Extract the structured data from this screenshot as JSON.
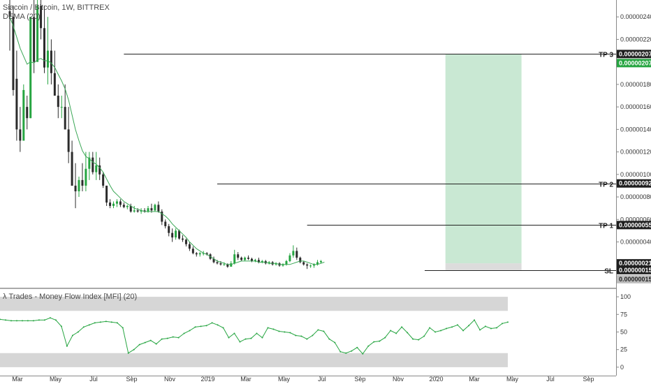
{
  "header": {
    "main_title": "Siacoin / Bitcoin, 1W, BITTREX",
    "main_indicator": "DEMA (20)",
    "mfi_title": "λ Trades - Money Flow Index [MFI] (20)"
  },
  "colors": {
    "up": "#26a541",
    "down": "#2b2b2b",
    "ma": "#3aa655",
    "profit_zone": "#c9e8d3",
    "stop_zone": "#bfbfbf",
    "mfi_band": "#d6d6d6"
  },
  "chart_data": [
    {
      "type": "candlestick",
      "title": "Siacoin / Bitcoin, 1W, BITTREX",
      "ylim": [
        0,
        2.55e-06
      ],
      "y_ticks": [
        4e-07,
        6e-07,
        8e-07,
        1e-06,
        1.2e-06,
        1.4e-06,
        1.6e-06,
        1.8e-06,
        2e-06,
        2.2e-06,
        2.4e-06
      ],
      "y_tick_labels": [
        "0.00000040",
        "0.00000060",
        "0.00000080",
        "0.00000100",
        "0.00000120",
        "0.00000140",
        "0.00000160",
        "0.00000180",
        "0.00000200",
        "0.00000220",
        "0.00000240"
      ],
      "x_tick_labels": [
        "Mar",
        "May",
        "Jul",
        "Sep",
        "Nov",
        "2019",
        "Mar",
        "May",
        "Jul",
        "Sep",
        "Nov",
        "2020",
        "Mar",
        "May",
        "Jul",
        "Sep"
      ],
      "candles": [
        {
          "o": 2.45e-06,
          "h": 2.6e-06,
          "l": 2.1e-06,
          "c": 2.4e-06
        },
        {
          "o": 2.4e-06,
          "h": 2.5e-06,
          "l": 1.7e-06,
          "c": 1.75e-06
        },
        {
          "o": 1.85e-06,
          "h": 2.1e-06,
          "l": 1.3e-06,
          "c": 1.4e-06
        },
        {
          "o": 1.4e-06,
          "h": 1.6e-06,
          "l": 1.2e-06,
          "c": 1.3e-06
        },
        {
          "o": 1.3e-06,
          "h": 1.8e-06,
          "l": 1.3e-06,
          "c": 1.75e-06
        },
        {
          "o": 1.6e-06,
          "h": 1.7e-06,
          "l": 1.4e-06,
          "c": 1.5e-06
        },
        {
          "o": 1.5e-06,
          "h": 2.4e-06,
          "l": 1.5e-06,
          "c": 2.4e-06
        },
        {
          "o": 2.4e-06,
          "h": 2.6e-06,
          "l": 1.9e-06,
          "c": 2e-06
        },
        {
          "o": 2e-06,
          "h": 2.6e-06,
          "l": 2e-06,
          "c": 2.5e-06
        },
        {
          "o": 2.5e-06,
          "h": 2.6e-06,
          "l": 2.2e-06,
          "c": 2.3e-06
        },
        {
          "o": 2.3e-06,
          "h": 2.5e-06,
          "l": 1.9e-06,
          "c": 1.95e-06
        },
        {
          "o": 1.95e-06,
          "h": 2.4e-06,
          "l": 1.8e-06,
          "c": 2.1e-06
        },
        {
          "o": 2.1e-06,
          "h": 2.2e-06,
          "l": 1.8e-06,
          "c": 1.9e-06
        },
        {
          "o": 1.9e-06,
          "h": 2.1e-06,
          "l": 1.7e-06,
          "c": 1.7e-06
        },
        {
          "o": 1.7e-06,
          "h": 1.8e-06,
          "l": 1.5e-06,
          "c": 1.6e-06
        },
        {
          "o": 1.6e-06,
          "h": 1.7e-06,
          "l": 1.5e-06,
          "c": 1.6e-06
        },
        {
          "o": 1.6e-06,
          "h": 1.8e-06,
          "l": 1.4e-06,
          "c": 1.4e-06
        },
        {
          "o": 1.4e-06,
          "h": 1.6e-06,
          "l": 1.1e-06,
          "c": 1.2e-06
        },
        {
          "o": 1.2e-06,
          "h": 1.3e-06,
          "l": 9e-07,
          "c": 9e-07
        },
        {
          "o": 9e-07,
          "h": 1.1e-06,
          "l": 7e-07,
          "c": 8.5e-07
        },
        {
          "o": 8.5e-07,
          "h": 9.8e-07,
          "l": 8e-07,
          "c": 9.5e-07
        },
        {
          "o": 9.5e-07,
          "h": 1.1e-06,
          "l": 8.5e-07,
          "c": 9e-07
        },
        {
          "o": 9e-07,
          "h": 1.2e-06,
          "l": 8.5e-07,
          "c": 1.05e-06
        },
        {
          "o": 1.05e-06,
          "h": 1.2e-06,
          "l": 9.5e-07,
          "c": 1.15e-06
        },
        {
          "o": 1.15e-06,
          "h": 1.2e-06,
          "l": 1e-06,
          "c": 1.02e-06
        },
        {
          "o": 1.02e-06,
          "h": 1.2e-06,
          "l": 9.5e-07,
          "c": 1.08e-06
        },
        {
          "o": 1.08e-06,
          "h": 1.15e-06,
          "l": 9.5e-07,
          "c": 1e-06
        },
        {
          "o": 1e-06,
          "h": 1.02e-06,
          "l": 8.8e-07,
          "c": 9e-07
        },
        {
          "o": 9e-07,
          "h": 9e-07,
          "l": 7.2e-07,
          "c": 7.5e-07
        },
        {
          "o": 7.5e-07,
          "h": 7.8e-07,
          "l": 7e-07,
          "c": 7.2e-07
        },
        {
          "o": 7.2e-07,
          "h": 7.6e-07,
          "l": 7e-07,
          "c": 7.4e-07
        },
        {
          "o": 7.4e-07,
          "h": 7.8e-07,
          "l": 7.1e-07,
          "c": 7.6e-07
        },
        {
          "o": 7.6e-07,
          "h": 7.8e-07,
          "l": 7.1e-07,
          "c": 7.3e-07
        },
        {
          "o": 7.3e-07,
          "h": 7.5e-07,
          "l": 7e-07,
          "c": 7.1e-07
        },
        {
          "o": 7.1e-07,
          "h": 7.3e-07,
          "l": 6.9e-07,
          "c": 7.2e-07
        },
        {
          "o": 7.2e-07,
          "h": 7.4e-07,
          "l": 6.6e-07,
          "c": 6.7e-07
        },
        {
          "o": 6.7e-07,
          "h": 7.2e-07,
          "l": 6.6e-07,
          "c": 6.8e-07
        },
        {
          "o": 6.8e-07,
          "h": 7e-07,
          "l": 6.6e-07,
          "c": 6.7e-07
        },
        {
          "o": 6.7e-07,
          "h": 7e-07,
          "l": 6.5e-07,
          "c": 6.8e-07
        },
        {
          "o": 6.8e-07,
          "h": 7e-07,
          "l": 6.6e-07,
          "c": 6.7e-07
        },
        {
          "o": 6.7e-07,
          "h": 7.2e-07,
          "l": 6.6e-07,
          "c": 7e-07
        },
        {
          "o": 7e-07,
          "h": 7.4e-07,
          "l": 6.6e-07,
          "c": 6.8e-07
        },
        {
          "o": 6.8e-07,
          "h": 7.4e-07,
          "l": 6.7e-07,
          "c": 7.3e-07
        },
        {
          "o": 7.3e-07,
          "h": 7.6e-07,
          "l": 6.6e-07,
          "c": 6.7e-07
        },
        {
          "o": 6.7e-07,
          "h": 6.9e-07,
          "l": 5.5e-07,
          "c": 5.8e-07
        },
        {
          "o": 5.8e-07,
          "h": 6e-07,
          "l": 5.2e-07,
          "c": 5.4e-07
        },
        {
          "o": 5.4e-07,
          "h": 5.6e-07,
          "l": 4.5e-07,
          "c": 4.8e-07
        },
        {
          "o": 4.8e-07,
          "h": 5.2e-07,
          "l": 4e-07,
          "c": 4.4e-07
        },
        {
          "o": 4.4e-07,
          "h": 5.2e-07,
          "l": 4.2e-07,
          "c": 5e-07
        },
        {
          "o": 5e-07,
          "h": 5.1e-07,
          "l": 4.2e-07,
          "c": 4.3e-07
        },
        {
          "o": 4.3e-07,
          "h": 4.6e-07,
          "l": 4e-07,
          "c": 4.2e-07
        },
        {
          "o": 4.2e-07,
          "h": 4.3e-07,
          "l": 3.6e-07,
          "c": 3.8e-07
        },
        {
          "o": 3.8e-07,
          "h": 4e-07,
          "l": 3.2e-07,
          "c": 3.4e-07
        },
        {
          "o": 3.4e-07,
          "h": 3.6e-07,
          "l": 2.9e-07,
          "c": 3e-07
        },
        {
          "o": 3e-07,
          "h": 3.1e-07,
          "l": 2.7e-07,
          "c": 2.9e-07
        },
        {
          "o": 2.9e-07,
          "h": 3.1e-07,
          "l": 2.7e-07,
          "c": 3e-07
        },
        {
          "o": 3e-07,
          "h": 3.2e-07,
          "l": 2.8e-07,
          "c": 3e-07
        },
        {
          "o": 3e-07,
          "h": 3.1e-07,
          "l": 2.8e-07,
          "c": 2.9e-07
        },
        {
          "o": 2.9e-07,
          "h": 3e-07,
          "l": 2.4e-07,
          "c": 2.5e-07
        },
        {
          "o": 2.5e-07,
          "h": 2.7e-07,
          "l": 2.1e-07,
          "c": 2.2e-07
        },
        {
          "o": 2.2e-07,
          "h": 2.4e-07,
          "l": 2e-07,
          "c": 2.1e-07
        },
        {
          "o": 2.1e-07,
          "h": 2.3e-07,
          "l": 1.9e-07,
          "c": 2e-07
        },
        {
          "o": 2e-07,
          "h": 2.2e-07,
          "l": 1.9e-07,
          "c": 2e-07
        },
        {
          "o": 2e-07,
          "h": 2.1e-07,
          "l": 1.7e-07,
          "c": 1.8e-07
        },
        {
          "o": 1.8e-07,
          "h": 2.3e-07,
          "l": 1.8e-07,
          "c": 2.1e-07
        },
        {
          "o": 2.1e-07,
          "h": 3.3e-07,
          "l": 2e-07,
          "c": 2.9e-07
        },
        {
          "o": 2.9e-07,
          "h": 3.1e-07,
          "l": 2.4e-07,
          "c": 2.6e-07
        },
        {
          "o": 2.6e-07,
          "h": 2.7e-07,
          "l": 2.3e-07,
          "c": 2.4e-07
        },
        {
          "o": 2.4e-07,
          "h": 2.7e-07,
          "l": 2.3e-07,
          "c": 2.6e-07
        },
        {
          "o": 2.6e-07,
          "h": 2.8e-07,
          "l": 2.4e-07,
          "c": 2.5e-07
        },
        {
          "o": 2.5e-07,
          "h": 2.6e-07,
          "l": 2.2e-07,
          "c": 2.3e-07
        },
        {
          "o": 2.3e-07,
          "h": 2.5e-07,
          "l": 2.2e-07,
          "c": 2.4e-07
        },
        {
          "o": 2.4e-07,
          "h": 2.6e-07,
          "l": 2.1e-07,
          "c": 2.2e-07
        },
        {
          "o": 2.2e-07,
          "h": 2.4e-07,
          "l": 2.1e-07,
          "c": 2.3e-07
        },
        {
          "o": 2.3e-07,
          "h": 2.4e-07,
          "l": 2e-07,
          "c": 2.1e-07
        },
        {
          "o": 2.1e-07,
          "h": 2.3e-07,
          "l": 2e-07,
          "c": 2.2e-07
        },
        {
          "o": 2.2e-07,
          "h": 2.3e-07,
          "l": 1.9e-07,
          "c": 2e-07
        },
        {
          "o": 2e-07,
          "h": 2.2e-07,
          "l": 1.9e-07,
          "c": 2.1e-07
        },
        {
          "o": 2.1e-07,
          "h": 2.2e-07,
          "l": 1.8e-07,
          "c": 1.9e-07
        },
        {
          "o": 1.9e-07,
          "h": 2.1e-07,
          "l": 1.8e-07,
          "c": 2e-07
        },
        {
          "o": 2e-07,
          "h": 2.4e-07,
          "l": 1.9e-07,
          "c": 2.3e-07
        },
        {
          "o": 2.3e-07,
          "h": 3e-07,
          "l": 2.2e-07,
          "c": 2.8e-07
        },
        {
          "o": 2.8e-07,
          "h": 3.7e-07,
          "l": 2.6e-07,
          "c": 3.2e-07
        },
        {
          "o": 3.2e-07,
          "h": 3.5e-07,
          "l": 2.4e-07,
          "c": 2.6e-07
        },
        {
          "o": 2.6e-07,
          "h": 2.7e-07,
          "l": 2.1e-07,
          "c": 2.2e-07
        },
        {
          "o": 2.2e-07,
          "h": 2.3e-07,
          "l": 1.9e-07,
          "c": 2e-07
        },
        {
          "o": 2e-07,
          "h": 2.1e-07,
          "l": 1.6e-07,
          "c": 1.9e-07
        },
        {
          "o": 1.9e-07,
          "h": 2e-07,
          "l": 1.7e-07,
          "c": 1.9e-07
        },
        {
          "o": 1.9e-07,
          "h": 2.1e-07,
          "l": 1.7e-07,
          "c": 2e-07
        },
        {
          "o": 2e-07,
          "h": 2.4e-07,
          "l": 1.9e-07,
          "c": 2.2e-07
        },
        {
          "o": 2.2e-07,
          "h": 2.4e-07,
          "l": 2.1e-07,
          "c": 2.3e-07
        }
      ],
      "dema_label": "DEMA (20)",
      "dema": [
        2.4e-06,
        2.32e-06,
        2.22e-06,
        2.12e-06,
        2.05e-06,
        1.98e-06,
        2e-06,
        1.99e-06,
        2.02e-06,
        2.03e-06,
        2.01e-06,
        2.01e-06,
        1.99e-06,
        1.95e-06,
        1.89e-06,
        1.83e-06,
        1.76e-06,
        1.66e-06,
        1.53e-06,
        1.4e-06,
        1.3e-06,
        1.21e-06,
        1.16e-06,
        1.14e-06,
        1.11e-06,
        1.09e-06,
        1.06e-06,
        1.02e-06,
        9.6e-07,
        9e-07,
        8.5e-07,
        8.2e-07,
        7.9e-07,
        7.6e-07,
        7.4e-07,
        7.2e-07,
        7e-07,
        6.9e-07,
        6.8e-07,
        6.7e-07,
        6.7e-07,
        6.7e-07,
        6.7e-07,
        6.7e-07,
        6.5e-07,
        6.3e-07,
        6e-07,
        5.6e-07,
        5.3e-07,
        5e-07,
        4.7e-07,
        4.4e-07,
        4e-07,
        3.7e-07,
        3.4e-07,
        3.2e-07,
        3e-07,
        2.9e-07,
        2.7e-07,
        2.5e-07,
        2.3e-07,
        2.2e-07,
        2.1e-07,
        2e-07,
        2e-07,
        2.1e-07,
        2.2e-07,
        2.3e-07,
        2.3e-07,
        2.3e-07,
        2.3e-07,
        2.3e-07,
        2.2e-07,
        2.2e-07,
        2.2e-07,
        2.1e-07,
        2.1e-07,
        2.1e-07,
        2e-07,
        2e-07,
        2e-07,
        2e-07,
        2.1e-07,
        2.2e-07,
        2.3e-07,
        2.3e-07,
        2.2e-07,
        2.1e-07,
        2e-07,
        2e-07,
        2.1e-07,
        2.2e-07
      ],
      "levels": [
        {
          "label": "TP 3",
          "value": 2.07e-06,
          "price_tag": "0.00000207",
          "start_index": 33
        },
        {
          "label": "TP 2",
          "value": 9.2e-07,
          "price_tag": "0.00000092",
          "start_index": 60
        },
        {
          "label": "TP 1",
          "value": 5.5e-07,
          "price_tag": "0.00000055",
          "start_index": 86
        },
        {
          "label": "SL",
          "value": 1.5e-07,
          "price_tag": "0.00000015",
          "start_index": 120
        }
      ],
      "price_tags": [
        {
          "text": "0.00000207",
          "value": 2.07e-06,
          "style": "dark",
          "offset": 0
        },
        {
          "text": "0.00000207",
          "value": 2.07e-06,
          "style": "green",
          "offset": 1
        },
        {
          "text": "0.00000092",
          "value": 9.2e-07,
          "style": "dark",
          "offset": 0
        },
        {
          "text": "0.00000055",
          "value": 5.5e-07,
          "style": "dark",
          "offset": 0
        },
        {
          "text": "0.00000021",
          "value": 2.1e-07,
          "style": "dark",
          "offset": 0
        },
        {
          "text": "0.00000015",
          "value": 1.5e-07,
          "style": "dark",
          "offset": 0
        },
        {
          "text": "0.00000015",
          "value": 1.5e-07,
          "style": "grey",
          "offset": 1
        }
      ],
      "position": {
        "entry": 2.1e-07,
        "target": 2.07e-06,
        "stop": 1.5e-07,
        "start_index": 126,
        "end_index": 148
      }
    },
    {
      "type": "line",
      "title": "λ Trades - Money Flow Index [MFI] (20)",
      "ylim": [
        -12,
        112
      ],
      "y_ticks": [
        0,
        25,
        50,
        75,
        100
      ],
      "y_tick_labels": [
        "0",
        "25",
        "50",
        "75",
        "100"
      ],
      "bands": [
        [
          80,
          100
        ],
        [
          0,
          20
        ]
      ],
      "series": [
        {
          "values": [
            68,
            67,
            66,
            66,
            66,
            66,
            66,
            67,
            67,
            70,
            67,
            58,
            30,
            45,
            50,
            57,
            60,
            63,
            64,
            65,
            64,
            63,
            56,
            20,
            25,
            32,
            35,
            38,
            33,
            40,
            41,
            43,
            42,
            48,
            52,
            57,
            58,
            59,
            63,
            60,
            56,
            42,
            48,
            36,
            40,
            41,
            48,
            42,
            56,
            54,
            51,
            50,
            49,
            45,
            44,
            40,
            45,
            53,
            51,
            40,
            35,
            22,
            20,
            23,
            28,
            19,
            30,
            36,
            37,
            42,
            52,
            48,
            57,
            49,
            40,
            39,
            44,
            56,
            50,
            52,
            55,
            57,
            60,
            52,
            59,
            67,
            53,
            58,
            55,
            56,
            62,
            64
          ]
        }
      ]
    }
  ]
}
